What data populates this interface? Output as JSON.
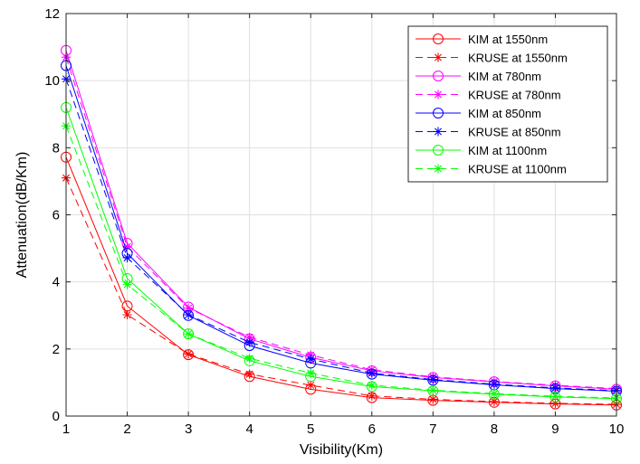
{
  "chart_data": {
    "type": "line",
    "title": "",
    "xlabel": "Visibility(Km)",
    "ylabel": "Attenuation(dB/Km)",
    "xlim": [
      1,
      10
    ],
    "ylim": [
      0,
      12
    ],
    "xticks": [
      1,
      2,
      3,
      4,
      5,
      6,
      7,
      8,
      9,
      10
    ],
    "yticks": [
      0,
      2,
      4,
      6,
      8,
      10,
      12
    ],
    "grid": true,
    "legend_position": "top-right",
    "x": [
      1,
      2,
      3,
      4,
      5,
      6,
      7,
      8,
      9,
      10
    ],
    "series": [
      {
        "name": "KIM at 1550nm",
        "color": "#ff0000",
        "line_style": "solid",
        "marker": "circle",
        "values": [
          7.72,
          3.28,
          1.83,
          1.18,
          0.8,
          0.55,
          0.47,
          0.41,
          0.36,
          0.33
        ]
      },
      {
        "name": "KRUSE at 1550nm",
        "color": "#ff0000",
        "line_style": "dashed",
        "marker": "asterisk",
        "values": [
          7.1,
          3.02,
          1.85,
          1.25,
          0.92,
          0.6,
          0.5,
          0.43,
          0.38,
          0.35
        ]
      },
      {
        "name": "KIM at 780nm",
        "color": "#ff00ff",
        "line_style": "solid",
        "marker": "circle",
        "values": [
          10.9,
          5.15,
          3.25,
          2.3,
          1.75,
          1.35,
          1.15,
          1.02,
          0.9,
          0.8
        ]
      },
      {
        "name": "KRUSE at 780nm",
        "color": "#ff00ff",
        "line_style": "dashed",
        "marker": "asterisk",
        "values": [
          10.7,
          5.05,
          3.22,
          2.35,
          1.82,
          1.38,
          1.17,
          1.03,
          0.92,
          0.82
        ]
      },
      {
        "name": "KIM at 850nm",
        "color": "#0000ff",
        "line_style": "solid",
        "marker": "circle",
        "values": [
          10.45,
          4.85,
          3.0,
          2.1,
          1.58,
          1.25,
          1.07,
          0.93,
          0.82,
          0.74
        ]
      },
      {
        "name": "KRUSE at 850nm",
        "color": "#0000ff",
        "line_style": "dashed",
        "marker": "asterisk",
        "values": [
          10.05,
          4.72,
          3.02,
          2.2,
          1.7,
          1.28,
          1.09,
          0.95,
          0.84,
          0.76
        ]
      },
      {
        "name": "KIM at 1100nm",
        "color": "#00ff00",
        "line_style": "solid",
        "marker": "circle",
        "values": [
          9.2,
          4.1,
          2.45,
          1.65,
          1.18,
          0.88,
          0.75,
          0.65,
          0.57,
          0.52
        ]
      },
      {
        "name": "KRUSE at 1100nm",
        "color": "#00ff00",
        "line_style": "dashed",
        "marker": "asterisk",
        "values": [
          8.65,
          3.92,
          2.45,
          1.72,
          1.28,
          0.92,
          0.77,
          0.67,
          0.59,
          0.54
        ]
      }
    ]
  }
}
